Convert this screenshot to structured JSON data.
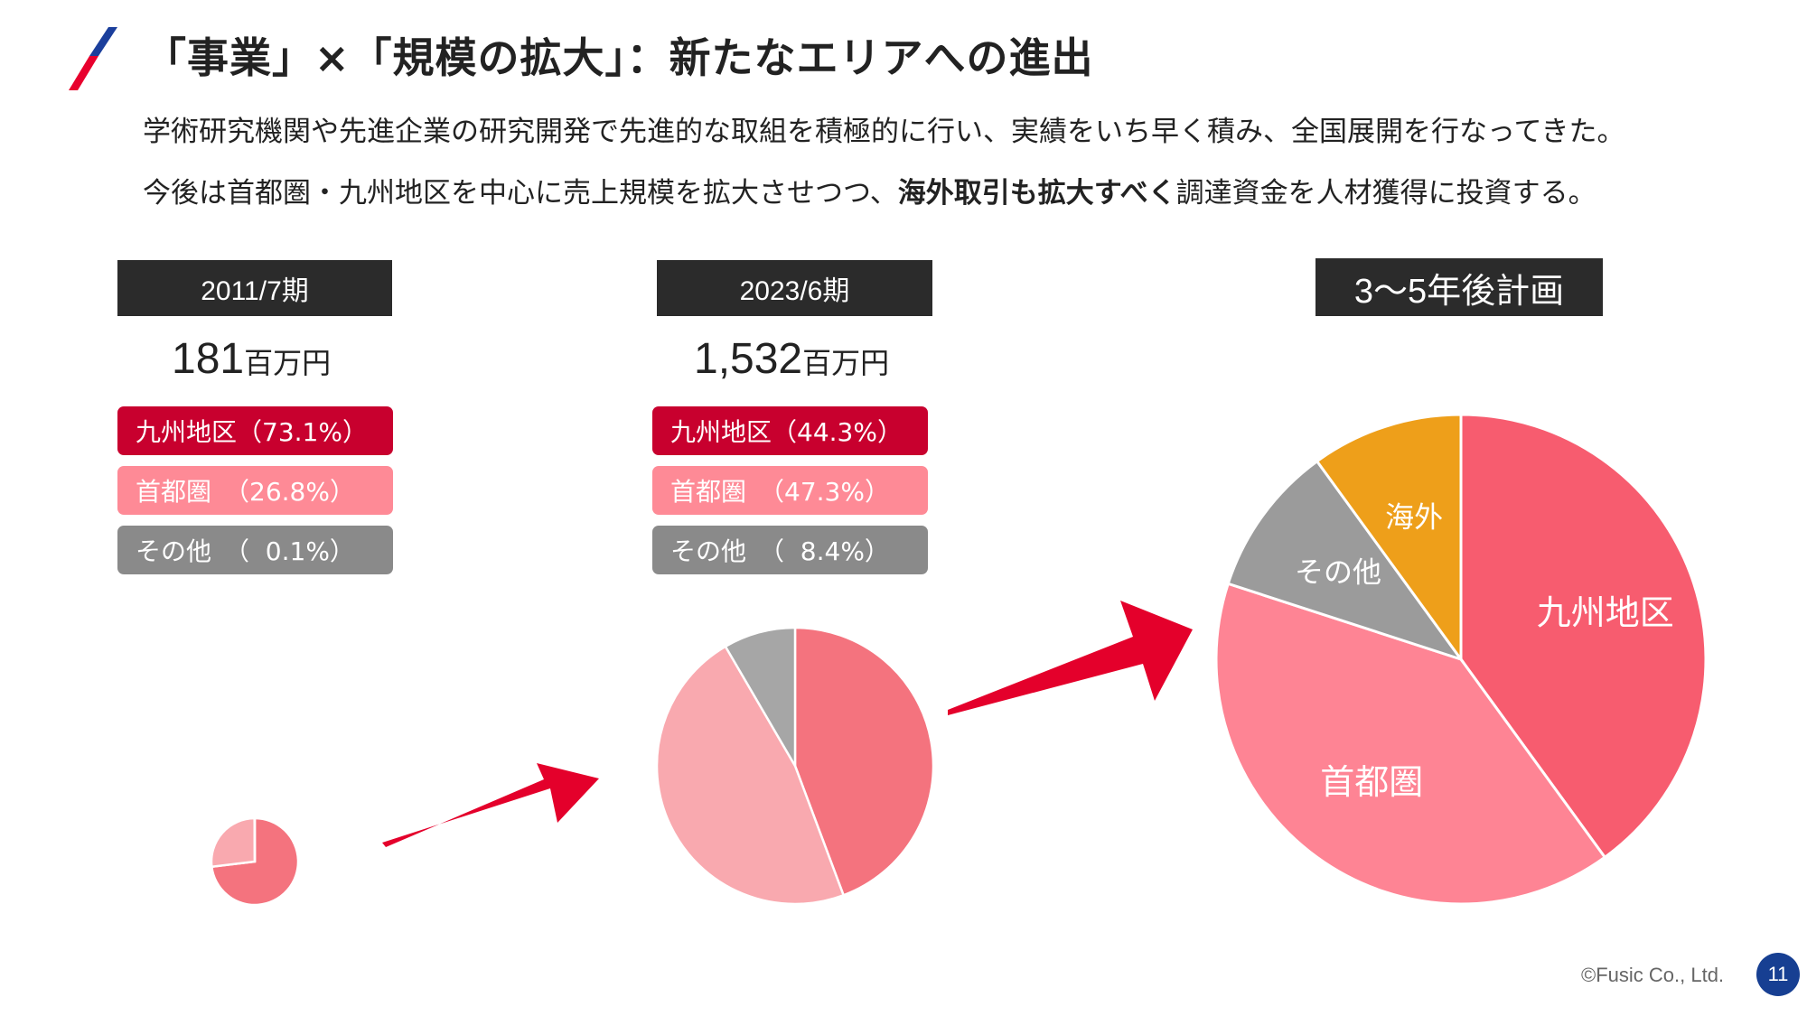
{
  "header": {
    "title": "「事業」×「規模の拡大」：新たなエリアへの進出",
    "accent_colors": [
      "#e8002d",
      "#1b3f9c"
    ]
  },
  "intro": {
    "line1": "学術研究機関や先進企業の研究開発で先進的な取組を積極的に行い、実績をいち早く積み、全国展開を行なってきた。",
    "line2_prefix": "今後は首都圏・九州地区を中心に売上規模を拡大させつつ、",
    "line2_bold": "海外取引も拡大すべく",
    "line2_suffix": "調達資金を人材獲得に投資する。"
  },
  "periods": [
    {
      "label": "2011/7期",
      "total": "181",
      "unit": "百万円",
      "breakdown": [
        "九州地区（73.1%）",
        "首都圏　（26.8%）",
        "その他　（  0.1%）"
      ]
    },
    {
      "label": "2023/6期",
      "total": "1,532",
      "unit": "百万円",
      "breakdown": [
        "九州地区（44.3%）",
        "首都圏　（47.3%）",
        "その他　（  8.4%）"
      ]
    },
    {
      "label": "3～5年後計画"
    }
  ],
  "chart_data": [
    {
      "type": "pie",
      "title": "2011/7期",
      "categories": [
        "九州地区",
        "首都圏",
        "その他"
      ],
      "values": [
        73.1,
        26.8,
        0.1
      ],
      "colors": [
        "#f4737e",
        "#f9a9af",
        "#a6a6a6"
      ]
    },
    {
      "type": "pie",
      "title": "2023/6期",
      "categories": [
        "九州地区",
        "首都圏",
        "その他"
      ],
      "values": [
        44.3,
        47.3,
        8.4
      ],
      "colors": [
        "#f4737e",
        "#f9a9af",
        "#a6a6a6"
      ]
    },
    {
      "type": "pie",
      "title": "3～5年後計画",
      "categories": [
        "九州地区",
        "首都圏",
        "その他",
        "海外"
      ],
      "values": [
        40,
        40,
        10,
        10
      ],
      "labels": [
        "九州地区",
        "首都圏",
        "その他",
        "海外"
      ],
      "colors": [
        "#f75c6f",
        "#fe8494",
        "#9b9b9b",
        "#ee9f1a"
      ]
    }
  ],
  "arrows_color": "#e4002b",
  "footer": {
    "copyright": "©Fusic Co., Ltd.",
    "page": "11"
  }
}
